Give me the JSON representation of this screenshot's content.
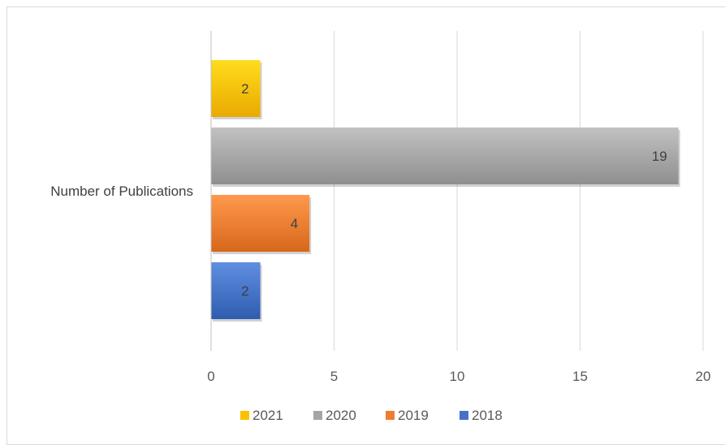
{
  "chart_data": {
    "type": "bar",
    "orientation": "horizontal",
    "categories": [
      "Number of Publications"
    ],
    "series": [
      {
        "name": "2018",
        "values": [
          2
        ],
        "color": "#4472C4"
      },
      {
        "name": "2019",
        "values": [
          4
        ],
        "color": "#ED7D31"
      },
      {
        "name": "2020",
        "values": [
          19
        ],
        "color": "#A5A5A5"
      },
      {
        "name": "2021",
        "values": [
          2
        ],
        "color": "#FFC000"
      }
    ],
    "legend_order": [
      "2021",
      "2020",
      "2019",
      "2018"
    ],
    "title": "",
    "xlabel": "",
    "ylabel": "",
    "xlim": [
      0,
      20
    ],
    "xticks": [
      "0",
      "5",
      "10",
      "15",
      "20"
    ],
    "data_labels": true,
    "grid": "vertical",
    "legend_position": "bottom"
  }
}
